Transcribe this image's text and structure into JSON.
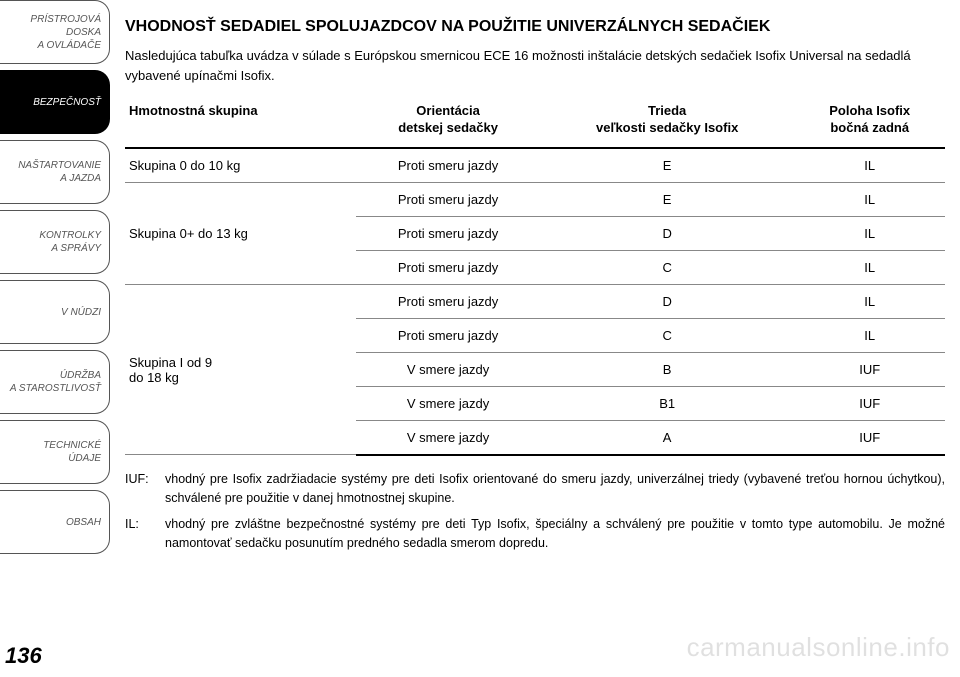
{
  "sidebar": {
    "items": [
      {
        "label_lines": [
          "PRÍSTROJOVÁ",
          "DOSKA",
          "A OVLÁDAČE"
        ]
      },
      {
        "label_lines": [
          "BEZPEČNOSŤ"
        ],
        "active": true
      },
      {
        "label_lines": [
          "NAŠTARTOVANIE",
          "A JAZDA"
        ]
      },
      {
        "label_lines": [
          "KONTROLKY",
          "A SPRÁVY"
        ]
      },
      {
        "label_lines": [
          "V NÚDZI"
        ]
      },
      {
        "label_lines": [
          "ÚDRŽBA",
          "A STAROSTLIVOSŤ"
        ]
      },
      {
        "label_lines": [
          "TECHNICKÉ ÚDAJE"
        ]
      },
      {
        "label_lines": [
          "OBSAH"
        ]
      }
    ]
  },
  "title": "VHODNOSŤ SEDADIEL SPOLUJAZDCOV NA POUŽITIE UNIVERZÁLNYCH SEDAČIEK",
  "intro": "Nasledujúca tabuľka uvádza v súlade s Európskou smernicou ECE 16 možnosti inštalácie detských sedačiek Isofix Universal na sedadlá vybavené upínačmi Isofix.",
  "table": {
    "columns": [
      {
        "line1": "Hmotnostná skupina",
        "line2": ""
      },
      {
        "line1": "Orientácia",
        "line2": "detskej sedačky"
      },
      {
        "line1": "Trieda",
        "line2": "veľkosti sedačky Isofix"
      },
      {
        "line1": "Poloha Isofix",
        "line2": "bočná zadná"
      }
    ],
    "rows": [
      {
        "group": "Skupina 0 do 10 kg",
        "rowspan": 1,
        "orientacia": "Proti smeru jazdy",
        "trieda": "E",
        "poloha": "IL"
      },
      {
        "group": "",
        "rowspan": 0,
        "group_start": "Skupina 0+ do 13 kg",
        "group_rowspan": 3,
        "orientacia": "Proti smeru jazdy",
        "trieda": "E",
        "poloha": "IL"
      },
      {
        "orientacia": "Proti smeru jazdy",
        "trieda": "D",
        "poloha": "IL"
      },
      {
        "orientacia": "Proti smeru jazdy",
        "trieda": "C",
        "poloha": "IL"
      },
      {
        "group_start": "Skupina I od 9\ndo 18 kg",
        "group_rowspan": 5,
        "orientacia": "Proti smeru jazdy",
        "trieda": "D",
        "poloha": "IL"
      },
      {
        "orientacia": "Proti smeru jazdy",
        "trieda": "C",
        "poloha": "IL"
      },
      {
        "orientacia": "V smere jazdy",
        "trieda": "B",
        "poloha": "IUF"
      },
      {
        "orientacia": "V smere jazdy",
        "trieda": "B1",
        "poloha": "IUF"
      },
      {
        "orientacia": "V smere jazdy",
        "trieda": "A",
        "poloha": "IUF"
      }
    ]
  },
  "legend": [
    {
      "key": "IUF:",
      "text": "vhodný pre Isofix zadržiadacie systémy pre deti Isofix orientované do smeru jazdy, univerzálnej triedy (vybavené treťou hornou úchytkou), schválené pre použitie v danej hmotnostnej skupine."
    },
    {
      "key": "IL:",
      "text": "vhodný pre zvláštne bezpečnostné systémy pre deti Typ Isofix, špeciálny a schválený pre použitie v tomto type automobilu. Je možné namontovať sedačku posunutím predného sedadla smerom dopredu."
    }
  ],
  "page_number": "136",
  "watermark": "carmanualsonline.info"
}
